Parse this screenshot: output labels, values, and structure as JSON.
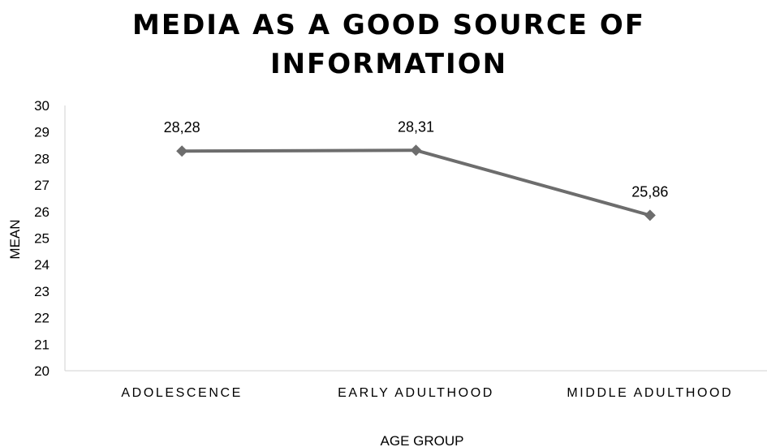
{
  "chart_data": {
    "type": "line",
    "title_lines": [
      "MEDIA AS A GOOD SOURCE OF",
      "INFORMATION"
    ],
    "xlabel": "AGE GROUP",
    "ylabel": "MEAN",
    "categories": [
      "ADOLESCENCE",
      "EARLY ADULTHOOD",
      "MIDDLE ADULTHOOD"
    ],
    "series": [
      {
        "values": [
          28.28,
          28.31,
          25.86
        ],
        "data_labels": [
          "28,28",
          "28,31",
          "25,86"
        ],
        "color": "#6d6d6d"
      }
    ],
    "ylim": [
      20,
      30
    ],
    "yticks": [
      20,
      21,
      22,
      23,
      24,
      25,
      26,
      27,
      28,
      29,
      30
    ],
    "grid": false,
    "legend": "none",
    "marker": "diamond",
    "axis_color": "#d9d9d9"
  }
}
